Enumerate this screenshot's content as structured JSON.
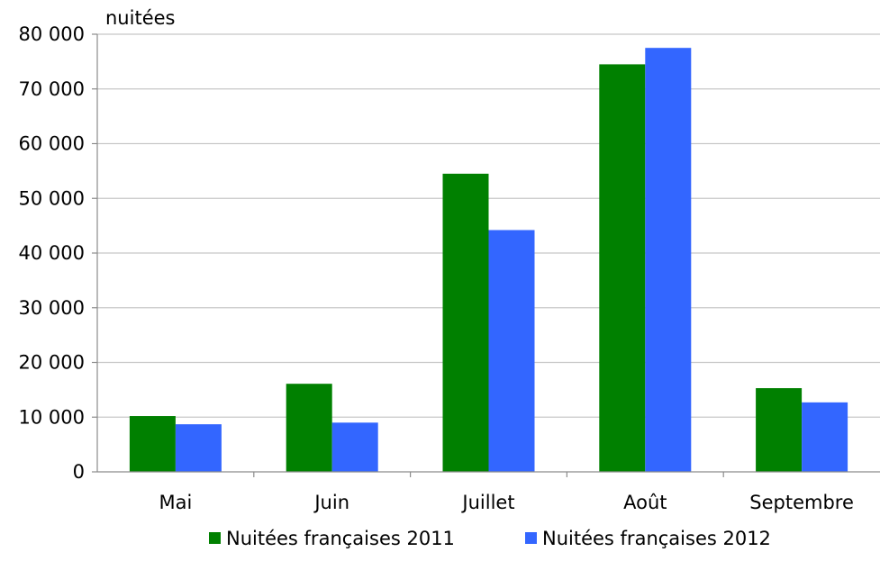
{
  "chart_data": {
    "type": "bar",
    "y_unit_label": "nuitées",
    "categories": [
      "Mai",
      "Juin",
      "Juillet",
      "Août",
      "Septembre"
    ],
    "series": [
      {
        "name": "Nuitées françaises 2011",
        "color": "#008000",
        "values": [
          10200,
          16100,
          54500,
          74500,
          15300
        ]
      },
      {
        "name": "Nuitées françaises 2012",
        "color": "#3366ff",
        "values": [
          8700,
          9000,
          44200,
          77500,
          12700
        ]
      }
    ],
    "ylim": [
      0,
      80000
    ],
    "y_ticks": [
      {
        "value": 0,
        "label": "0"
      },
      {
        "value": 10000,
        "label": "10 000"
      },
      {
        "value": 20000,
        "label": "20 000"
      },
      {
        "value": 30000,
        "label": "30 000"
      },
      {
        "value": 40000,
        "label": "40 000"
      },
      {
        "value": 50000,
        "label": "50 000"
      },
      {
        "value": 60000,
        "label": "60 000"
      },
      {
        "value": 70000,
        "label": "70 000"
      },
      {
        "value": 80000,
        "label": "80 000"
      }
    ],
    "grid": true,
    "legend": "bottom"
  }
}
